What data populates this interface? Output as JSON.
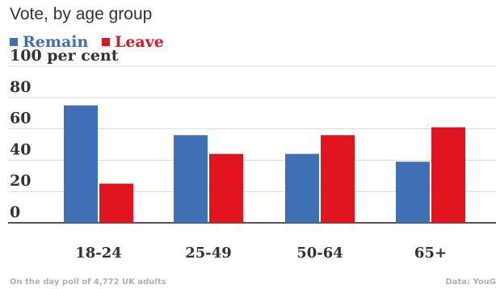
{
  "chart_data": {
    "type": "bar",
    "title": "Vote, by age group",
    "ylabel": "per cent",
    "ylim": [
      0,
      100
    ],
    "yticks": [
      "100 per cent",
      "80",
      "60",
      "40",
      "20",
      "0"
    ],
    "categories": [
      "18-24",
      "25-49",
      "50-64",
      "65+"
    ],
    "series": [
      {
        "name": "Remain",
        "color": "#3f6fb5",
        "values": [
          75,
          56,
          44,
          39
        ]
      },
      {
        "name": "Leave",
        "color": "#e2141f",
        "values": [
          25,
          44,
          56,
          61
        ]
      }
    ],
    "grid": true,
    "legend_position": "top-left"
  },
  "footer": {
    "note": "On the day poll of 4,772 UK adults",
    "source": "Data: YouG"
  }
}
